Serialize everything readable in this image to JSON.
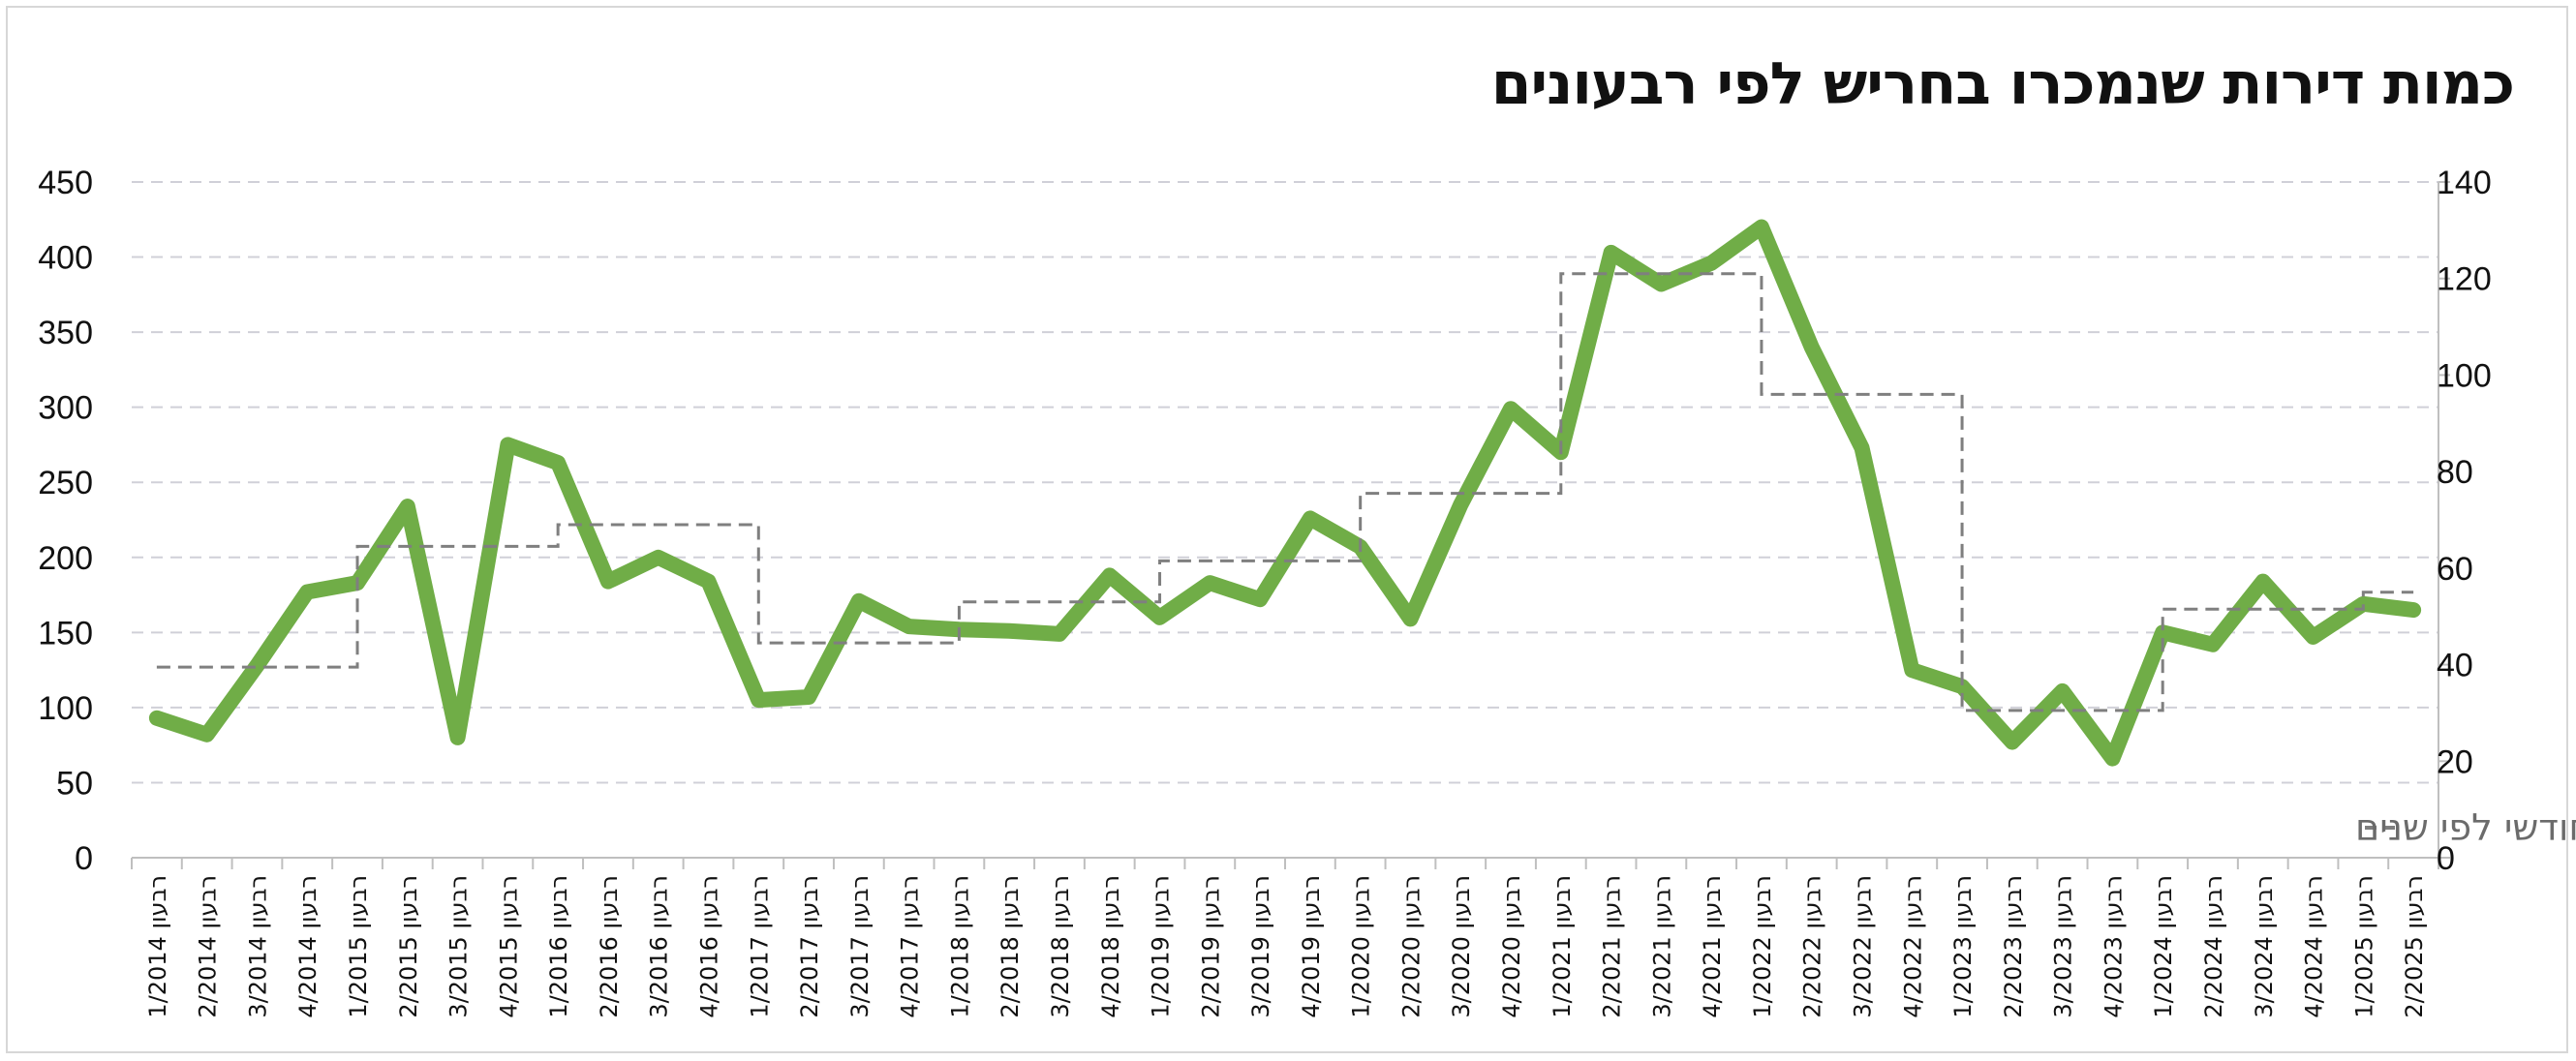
{
  "chart_data": {
    "type": "line",
    "title": "כמות דירות שנמכרו בחריש לפי רבעונים",
    "categories": [
      "רבעון 1/2014",
      "רבעון 2/2014",
      "רבעון 3/2014",
      "רבעון 4/2014",
      "רבעון 1/2015",
      "רבעון 2/2015",
      "רבעון 3/2015",
      "רבעון 4/2015",
      "רבעון 1/2016",
      "רבעון 2/2016",
      "רבעון 3/2016",
      "רבעון 4/2016",
      "רבעון 1/2017",
      "רבעון 2/2017",
      "רבעון 3/2017",
      "רבעון 4/2017",
      "רבעון 1/2018",
      "רבעון 2/2018",
      "רבעון 3/2018",
      "רבעון 4/2018",
      "רבעון 1/2019",
      "רבעון 2/2019",
      "רבעון 3/2019",
      "רבעון 4/2019",
      "רבעון 1/2020",
      "רבעון 2/2020",
      "רבעון 3/2020",
      "רבעון 4/2020",
      "רבעון 1/2021",
      "רבעון 2/2021",
      "רבעון 3/2021",
      "רבעון 4/2021",
      "רבעון 1/2022",
      "רבעון 2/2022",
      "רבעון 3/2022",
      "רבעון 4/2022",
      "רבעון 1/2023",
      "רבעון 2/2023",
      "רבעון 3/2023",
      "רבעון 4/2023",
      "רבעון 1/2024",
      "רבעון 2/2024",
      "רבעון 3/2024",
      "רבעון 4/2024",
      "רבעון 1/2025",
      "רבעון 2/2025"
    ],
    "y_left": {
      "min": 0,
      "max": 450,
      "ticks": [
        0,
        50,
        100,
        150,
        200,
        250,
        300,
        350,
        400,
        450
      ]
    },
    "y_right": {
      "min": 0,
      "max": 140,
      "ticks": [
        0,
        20,
        40,
        60,
        80,
        100,
        120,
        140
      ]
    },
    "grid": true,
    "legend_position": "bottom-right",
    "series": [
      {
        "axis": "left",
        "style": "solid",
        "color": "#70ad47",
        "values": [
          93,
          82,
          128,
          177,
          183,
          234,
          80,
          275,
          263,
          184,
          200,
          184,
          105,
          107,
          171,
          154,
          152,
          151,
          149,
          188,
          160,
          183,
          172,
          226,
          207,
          159,
          235,
          299,
          270,
          403,
          382,
          396,
          420,
          340,
          273,
          125,
          114,
          77,
          111,
          66,
          150,
          142,
          184,
          147,
          169,
          165
        ]
      },
      {
        "name": "ממוצע מכירות חודשי לפי שנים",
        "axis": "right",
        "style": "dashed",
        "color": "#7f7f7f",
        "values": [
          39.5,
          39.5,
          39.5,
          39.5,
          64.5,
          64.5,
          64.5,
          64.5,
          69,
          69,
          69,
          69,
          44.5,
          44.5,
          44.5,
          44.5,
          53,
          53,
          53,
          53,
          61.5,
          61.5,
          61.5,
          61.5,
          75.5,
          75.5,
          75.5,
          75.5,
          121,
          121,
          121,
          121,
          96,
          96,
          96,
          96,
          30.5,
          30.5,
          30.5,
          30.5,
          51.5,
          51.5,
          51.5,
          51.5,
          55,
          55
        ]
      }
    ]
  }
}
